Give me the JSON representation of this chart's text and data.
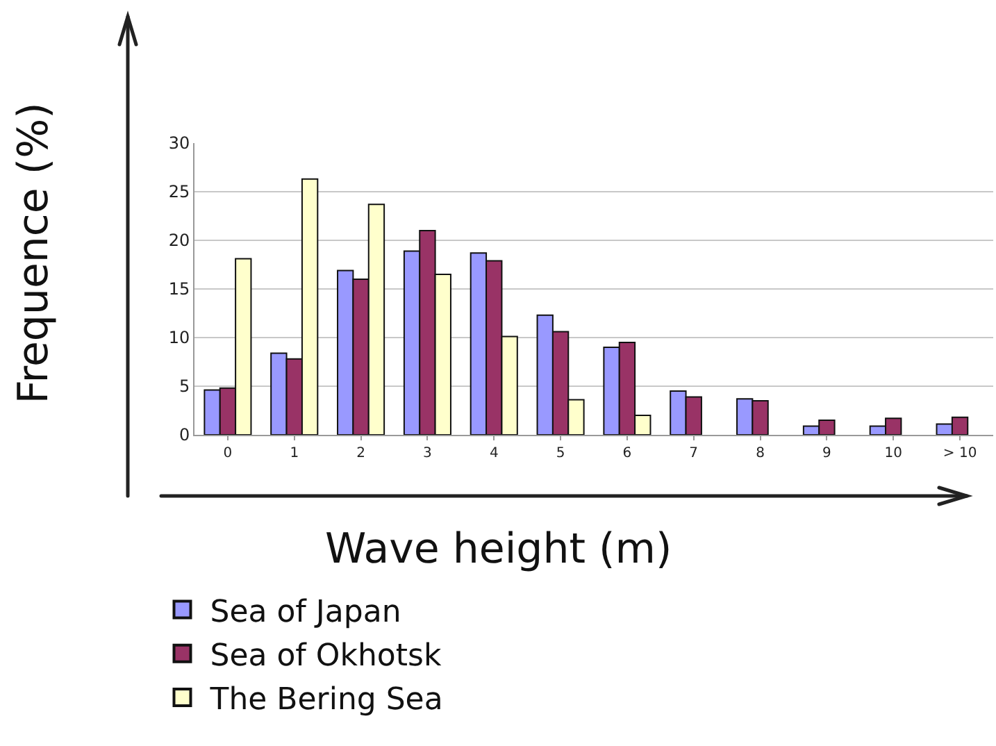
{
  "chart_data": {
    "type": "bar",
    "xlabel": "Wave height (m)",
    "ylabel": "Frequence (%)",
    "categories": [
      "0",
      "1",
      "2",
      "3",
      "4",
      "5",
      "6",
      "7",
      "8",
      "9",
      "10",
      "> 10"
    ],
    "series": [
      {
        "name": "Sea of Japan",
        "color": "#9999ff",
        "values": [
          4.6,
          8.4,
          16.9,
          18.9,
          18.7,
          12.3,
          9.0,
          4.5,
          3.7,
          0.9,
          0.9,
          1.1
        ]
      },
      {
        "name": "Sea of Okhotsk",
        "color": "#993366",
        "values": [
          4.8,
          7.8,
          16.0,
          21.0,
          17.9,
          10.6,
          9.5,
          3.9,
          3.5,
          1.5,
          1.7,
          1.8
        ]
      },
      {
        "name": "The Bering Sea",
        "color": "#ffffcc",
        "values": [
          18.1,
          26.3,
          23.7,
          16.5,
          10.1,
          3.6,
          2.0,
          null,
          null,
          null,
          null,
          null
        ]
      }
    ],
    "ylim": [
      0,
      30
    ],
    "yticks": [
      0,
      5,
      10,
      15,
      20,
      25,
      30
    ],
    "grid": "y",
    "legend": "bottom left"
  }
}
